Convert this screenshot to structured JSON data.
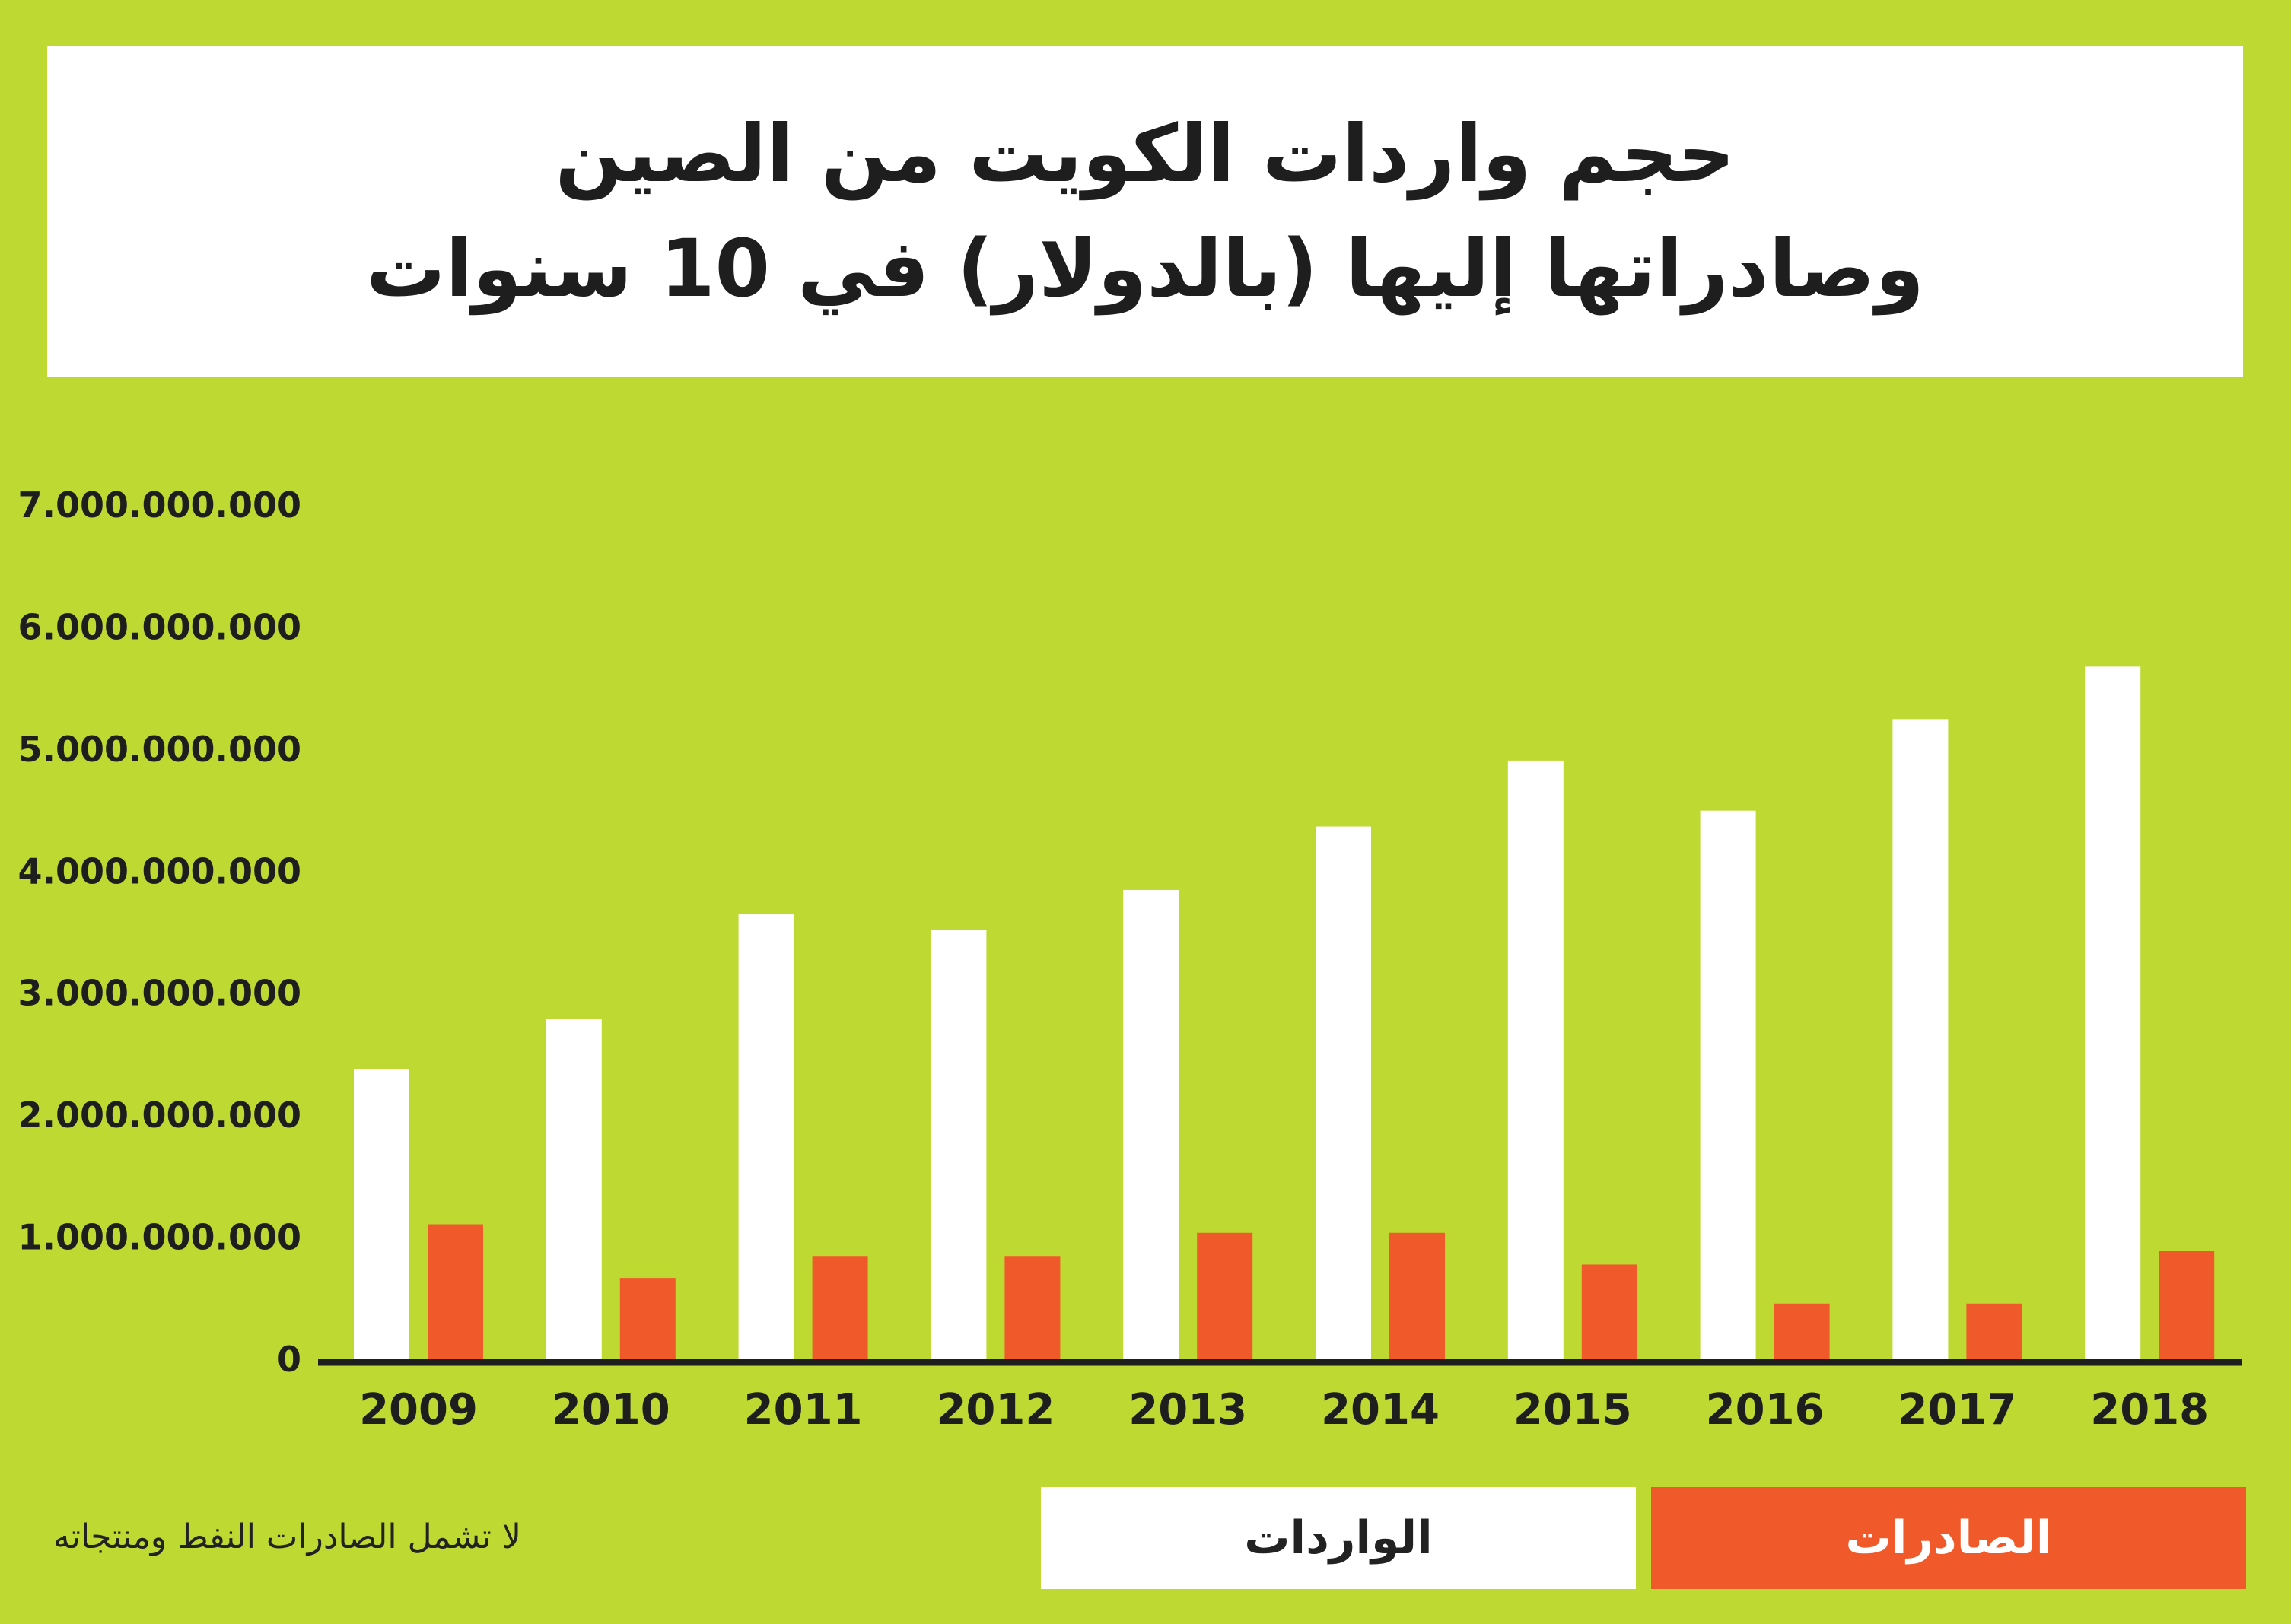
{
  "title": {
    "line1": "حجم واردات الكويت من الصين",
    "line2": "وصادراتها إليها (بالدولار) في 10 سنوات"
  },
  "colors": {
    "background": "#bdd932",
    "imports": "#ffffff",
    "exports": "#f05a2b",
    "text": "#1e1e1e"
  },
  "chart_data": {
    "type": "bar",
    "title": "حجم واردات الكويت من الصين وصادراتها إليها (بالدولار) في 10 سنوات",
    "categories": [
      "2009",
      "2010",
      "2011",
      "2012",
      "2013",
      "2014",
      "2015",
      "2016",
      "2017",
      "2018"
    ],
    "series": [
      {
        "name": "الواردات",
        "color": "#ffffff",
        "values": [
          2370000000,
          2780000000,
          3640000000,
          3510000000,
          3840000000,
          4360000000,
          4900000000,
          4490000000,
          5240000000,
          5670000000
        ]
      },
      {
        "name": "الصادرات",
        "color": "#f05a2b",
        "values": [
          1100000000,
          660000000,
          840000000,
          840000000,
          1030000000,
          1030000000,
          770000000,
          450000000,
          450000000,
          880000000
        ]
      }
    ],
    "ylim": [
      0,
      7000000000
    ],
    "yticks": [
      0,
      1000000000,
      2000000000,
      3000000000,
      4000000000,
      5000000000,
      6000000000,
      7000000000
    ],
    "ytick_labels": [
      "0",
      "1.000.000.000",
      "2.000.000.000",
      "3.000.000.000",
      "4.000.000.000",
      "5.000.000.000",
      "6.000.000.000",
      "7.000.000.000"
    ],
    "xlabel": "",
    "ylabel": "",
    "grid": false,
    "legend_position": "bottom-right"
  },
  "legend": {
    "imports_label": "الواردات",
    "exports_label": "الصادرات"
  },
  "footnote": "لا تشمل الصادرات النفط ومنتجاته"
}
